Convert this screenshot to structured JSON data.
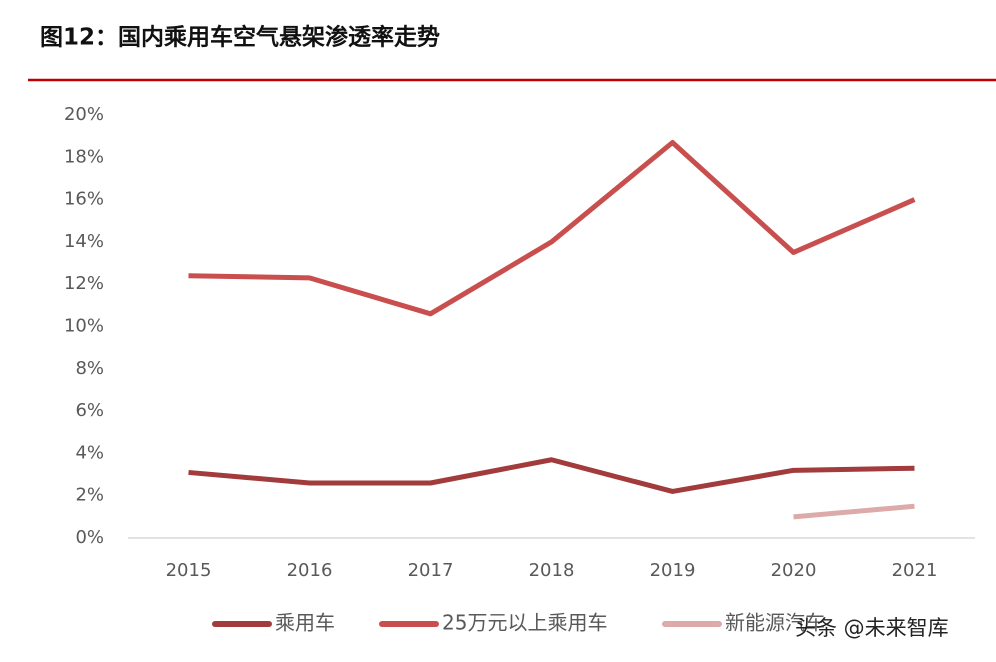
{
  "chart_data": {
    "type": "line",
    "title": "图12：国内乘用车空气悬架渗透率走势",
    "categories": [
      "2015",
      "2016",
      "2017",
      "2018",
      "2019",
      "2020",
      "2021"
    ],
    "series": [
      {
        "name": "乘用车",
        "color": "#a23b3b",
        "values": [
          3.1,
          2.6,
          2.6,
          3.7,
          2.2,
          3.2,
          3.3
        ]
      },
      {
        "name": "25万元以上乘用车",
        "color": "#c84f4e",
        "values": [
          12.4,
          12.3,
          10.6,
          14.0,
          18.7,
          13.5,
          16.0
        ]
      },
      {
        "name": "新能源汽车",
        "color": "#dcaaa8",
        "values": [
          null,
          null,
          null,
          null,
          null,
          1.0,
          1.5
        ]
      }
    ],
    "ylim": [
      0,
      20
    ],
    "yticks": [
      {
        "value": 0,
        "label": "0%"
      },
      {
        "value": 2,
        "label": "2%"
      },
      {
        "value": 4,
        "label": "4%"
      },
      {
        "value": 6,
        "label": "6%"
      },
      {
        "value": 8,
        "label": "8%"
      },
      {
        "value": 10,
        "label": "10%"
      },
      {
        "value": 12,
        "label": "12%"
      },
      {
        "value": 14,
        "label": "14%"
      },
      {
        "value": 16,
        "label": "16%"
      },
      {
        "value": 18,
        "label": "18%"
      },
      {
        "value": 20,
        "label": "20%"
      }
    ],
    "grid": false,
    "watermark": "头条 @未来智库"
  }
}
